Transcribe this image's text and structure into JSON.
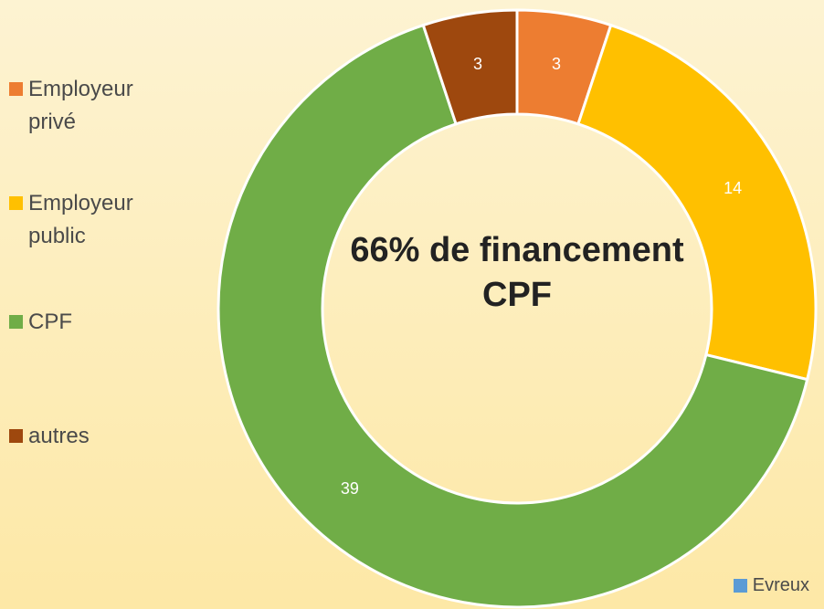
{
  "chart_data": {
    "type": "doughnut",
    "annotation": "66% de financement CPF",
    "categories": [
      "Employeur privé",
      "Employeur public",
      "CPF",
      "autres"
    ],
    "colors": [
      "#ed7d31",
      "#ffc000",
      "#70ad47",
      "#9e480e"
    ],
    "series": [
      {
        "name": "Evreux",
        "color": "#5b9bd5",
        "values": [
          3,
          14,
          39,
          3
        ]
      }
    ]
  }
}
